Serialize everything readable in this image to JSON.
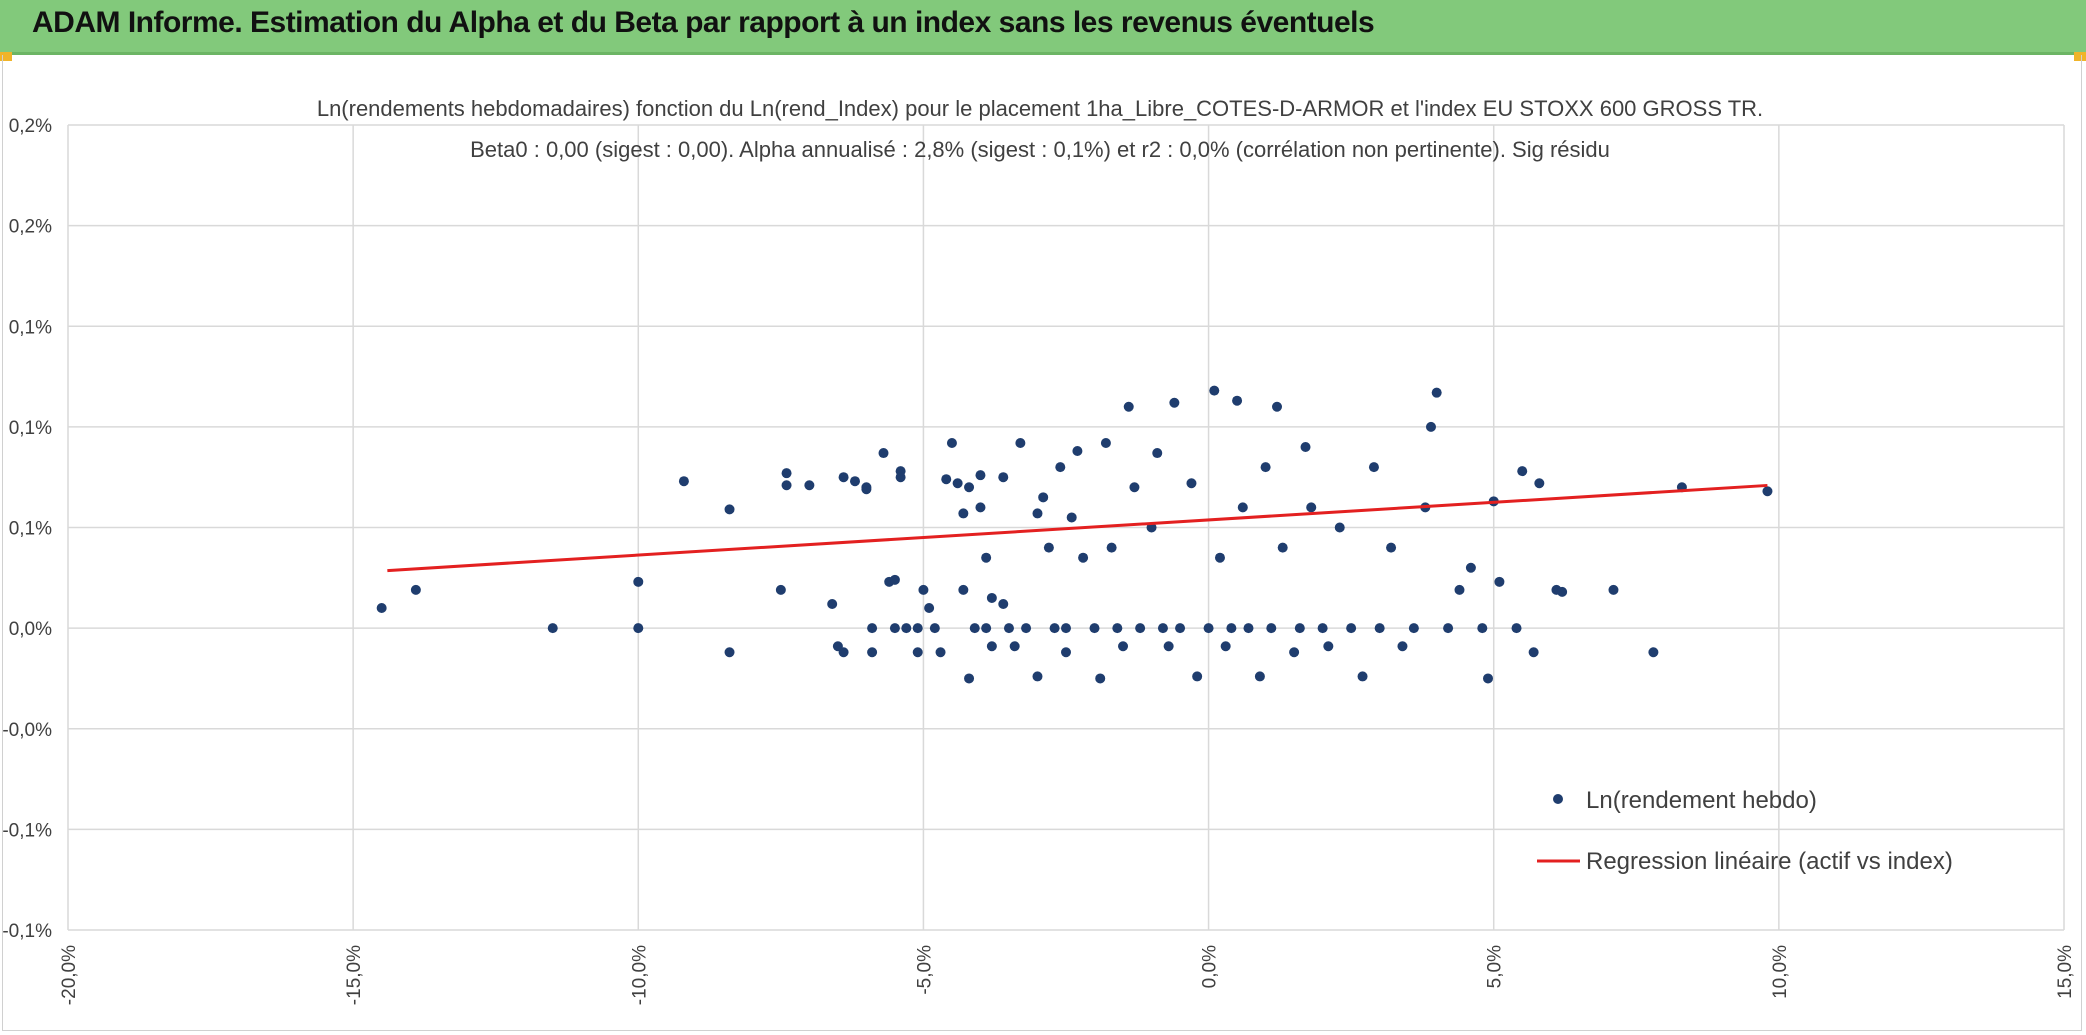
{
  "header": {
    "title": "ADAM Informe. Estimation du Alpha et du Beta par rapport à un index sans les revenus éventuels",
    "accent": "#82c97b"
  },
  "chart_data": {
    "type": "scatter",
    "title": "Ln(rendements hebdomadaires) fonction du Ln(rend_Index) pour le placement 1ha_Libre_COTES-D-ARMOR et l'index EU STOXX 600 GROSS TR.",
    "subtitle": "Beta0 : 0,00 (sigest : 0,00). Alpha annualisé : 2,8% (sigest : 0,1%) et r2 : 0,0% (corrélation non pertinente). Sig résidu",
    "xlabel": "",
    "ylabel": "",
    "xlim": [
      -20,
      15
    ],
    "ylim": [
      -0.15,
      0.25
    ],
    "x_ticks": [
      -20,
      -15,
      -10,
      -5,
      0,
      5,
      10,
      15
    ],
    "x_tick_labels": [
      "-20,0%",
      "-15,0%",
      "-10,0%",
      "-5,0%",
      "0,0%",
      "5,0%",
      "10,0%",
      "15,0%"
    ],
    "y_ticks": [
      -0.15,
      -0.1,
      -0.05,
      0.0,
      0.05,
      0.1,
      0.15,
      0.2,
      0.25
    ],
    "y_tick_labels": [
      "-0,1%",
      "-0,1%",
      "-0,0%",
      "0,0%",
      "0,1%",
      "0,1%",
      "0,1%",
      "0,2%",
      "0,2%"
    ],
    "gridlines": true,
    "legend_position": "bottom-right",
    "series": [
      {
        "name": "Ln(rendement hebdo)",
        "kind": "scatter",
        "color": "#1f3d6e",
        "points": [
          [
            -14.5,
            0.01
          ],
          [
            -13.9,
            0.019
          ],
          [
            -11.5,
            0.0
          ],
          [
            -10.0,
            0.0
          ],
          [
            -10.0,
            0.023
          ],
          [
            -9.2,
            0.073
          ],
          [
            -8.4,
            0.059
          ],
          [
            -8.4,
            -0.012
          ],
          [
            -7.5,
            0.019
          ],
          [
            -7.4,
            0.077
          ],
          [
            -7.4,
            0.071
          ],
          [
            -7.0,
            0.071
          ],
          [
            -6.6,
            0.012
          ],
          [
            -6.5,
            -0.009
          ],
          [
            -6.4,
            -0.012
          ],
          [
            -6.4,
            0.075
          ],
          [
            -6.2,
            0.073
          ],
          [
            -6.0,
            0.069
          ],
          [
            -6.0,
            0.07
          ],
          [
            -5.9,
            -0.012
          ],
          [
            -5.9,
            0.0
          ],
          [
            -5.7,
            0.087
          ],
          [
            -5.6,
            0.023
          ],
          [
            -5.5,
            0.0
          ],
          [
            -5.5,
            0.024
          ],
          [
            -5.4,
            0.078
          ],
          [
            -5.4,
            0.075
          ],
          [
            -5.3,
            0.0
          ],
          [
            -5.1,
            -0.012
          ],
          [
            -5.1,
            0.0
          ],
          [
            -5.0,
            0.019
          ],
          [
            -4.9,
            0.01
          ],
          [
            -4.8,
            0.0
          ],
          [
            -4.7,
            -0.012
          ],
          [
            -4.6,
            0.074
          ],
          [
            -4.5,
            0.092
          ],
          [
            -4.4,
            0.072
          ],
          [
            -4.3,
            0.019
          ],
          [
            -4.3,
            0.057
          ],
          [
            -4.2,
            -0.025
          ],
          [
            -4.2,
            0.07
          ],
          [
            -4.1,
            0.0
          ],
          [
            -4.0,
            0.076
          ],
          [
            -4.0,
            0.06
          ],
          [
            -3.9,
            0.035
          ],
          [
            -3.9,
            0.0
          ],
          [
            -3.8,
            0.015
          ],
          [
            -3.8,
            -0.009
          ],
          [
            -3.6,
            0.012
          ],
          [
            -3.6,
            0.075
          ],
          [
            -3.5,
            0.0
          ],
          [
            -3.4,
            -0.009
          ],
          [
            -3.3,
            0.092
          ],
          [
            -3.2,
            0.0
          ],
          [
            -3.0,
            -0.024
          ],
          [
            -3.0,
            0.057
          ],
          [
            -2.9,
            0.065
          ],
          [
            -2.8,
            0.04
          ],
          [
            -2.7,
            0.0
          ],
          [
            -2.6,
            0.08
          ],
          [
            -2.5,
            -0.012
          ],
          [
            -2.5,
            0.0
          ],
          [
            -2.4,
            0.055
          ],
          [
            -2.3,
            0.088
          ],
          [
            -2.2,
            0.035
          ],
          [
            -2.0,
            0.0
          ],
          [
            -1.9,
            -0.025
          ],
          [
            -1.8,
            0.092
          ],
          [
            -1.7,
            0.04
          ],
          [
            -1.6,
            0.0
          ],
          [
            -1.5,
            -0.009
          ],
          [
            -1.4,
            0.11
          ],
          [
            -1.3,
            0.07
          ],
          [
            -1.2,
            0.0
          ],
          [
            -1.0,
            0.05
          ],
          [
            -0.9,
            0.087
          ],
          [
            -0.8,
            0.0
          ],
          [
            -0.7,
            -0.009
          ],
          [
            -0.6,
            0.112
          ],
          [
            -0.5,
            0.0
          ],
          [
            -0.3,
            0.072
          ],
          [
            -0.2,
            -0.024
          ],
          [
            0.0,
            0.0
          ],
          [
            0.1,
            0.118
          ],
          [
            0.2,
            0.035
          ],
          [
            0.3,
            -0.009
          ],
          [
            0.4,
            0.0
          ],
          [
            0.5,
            0.113
          ],
          [
            0.6,
            0.06
          ],
          [
            0.7,
            0.0
          ],
          [
            0.9,
            -0.024
          ],
          [
            1.0,
            0.08
          ],
          [
            1.1,
            0.0
          ],
          [
            1.2,
            0.11
          ],
          [
            1.3,
            0.04
          ],
          [
            1.5,
            -0.012
          ],
          [
            1.6,
            0.0
          ],
          [
            1.7,
            0.09
          ],
          [
            1.8,
            0.06
          ],
          [
            2.0,
            0.0
          ],
          [
            2.1,
            -0.009
          ],
          [
            2.3,
            0.05
          ],
          [
            2.5,
            0.0
          ],
          [
            2.7,
            -0.024
          ],
          [
            2.9,
            0.08
          ],
          [
            3.0,
            0.0
          ],
          [
            3.2,
            0.04
          ],
          [
            3.4,
            -0.009
          ],
          [
            3.6,
            0.0
          ],
          [
            3.8,
            0.06
          ],
          [
            3.9,
            0.1
          ],
          [
            4.0,
            0.117
          ],
          [
            4.2,
            0.0
          ],
          [
            4.4,
            0.019
          ],
          [
            4.6,
            0.03
          ],
          [
            4.8,
            0.0
          ],
          [
            4.9,
            -0.025
          ],
          [
            5.0,
            0.063
          ],
          [
            5.1,
            0.023
          ],
          [
            5.4,
            0.0
          ],
          [
            5.5,
            0.078
          ],
          [
            5.7,
            -0.012
          ],
          [
            5.8,
            0.072
          ],
          [
            6.1,
            0.019
          ],
          [
            6.2,
            0.018
          ],
          [
            7.1,
            0.019
          ],
          [
            7.8,
            -0.012
          ],
          [
            8.3,
            0.07
          ],
          [
            9.8,
            0.068
          ]
        ]
      },
      {
        "name": "Regression linéaire (actif vs index)",
        "kind": "line",
        "color": "#e32020",
        "points": [
          [
            -14.4,
            0.0286
          ],
          [
            9.8,
            0.0709
          ]
        ]
      }
    ]
  }
}
